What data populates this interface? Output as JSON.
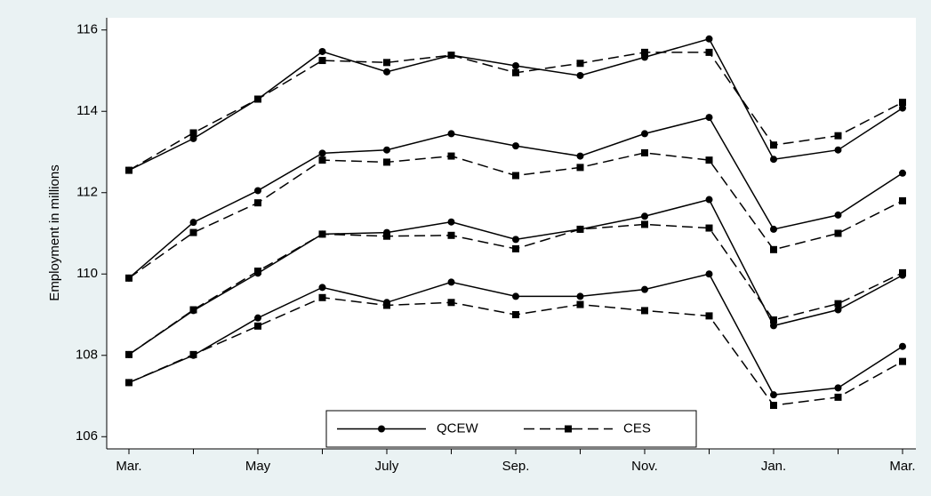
{
  "chart_data": {
    "type": "line",
    "y_label": "Employment in millions",
    "categories": [
      "Mar.",
      null,
      "May",
      null,
      "July",
      null,
      "Sep.",
      null,
      "Nov.",
      null,
      "Jan.",
      null,
      "Mar."
    ],
    "ylim": [
      105.7,
      116.3
    ],
    "yticks": [
      106,
      108,
      110,
      112,
      114,
      116
    ],
    "series": [
      {
        "name": "QCEW",
        "color": "#000000",
        "line_style": "solid",
        "marker": "circle",
        "values": [
          [
            112.55,
            113.33,
            114.3,
            115.47,
            114.97,
            115.38,
            115.12,
            114.88,
            115.33,
            115.78,
            112.82,
            113.05,
            114.08
          ],
          [
            109.9,
            111.27,
            112.05,
            112.97,
            113.05,
            113.45,
            113.15,
            112.9,
            113.45,
            113.85,
            111.1,
            111.45,
            112.48
          ],
          [
            108.02,
            109.1,
            110.02,
            110.98,
            111.02,
            111.28,
            110.85,
            111.1,
            111.42,
            111.83,
            108.73,
            109.12,
            109.97
          ],
          [
            107.33,
            108.0,
            108.92,
            109.67,
            109.3,
            109.8,
            109.45,
            109.45,
            109.62,
            110.0,
            107.03,
            107.2,
            108.22
          ]
        ]
      },
      {
        "name": "CES",
        "color": "#000000",
        "line_style": "dashed",
        "marker": "square",
        "values": [
          [
            112.55,
            113.47,
            114.3,
            115.25,
            115.2,
            115.38,
            114.95,
            115.18,
            115.45,
            115.45,
            113.17,
            113.4,
            114.22
          ],
          [
            109.9,
            111.02,
            111.75,
            112.8,
            112.75,
            112.9,
            112.42,
            112.62,
            112.98,
            112.8,
            110.6,
            111.0,
            111.8
          ],
          [
            108.02,
            109.12,
            110.07,
            110.98,
            110.93,
            110.95,
            110.62,
            111.1,
            111.22,
            111.13,
            108.87,
            109.27,
            110.03
          ],
          [
            107.33,
            108.02,
            108.72,
            109.42,
            109.23,
            109.3,
            109.0,
            109.25,
            109.1,
            108.97,
            106.77,
            106.97,
            107.85
          ]
        ]
      }
    ],
    "legend": "bottom"
  }
}
